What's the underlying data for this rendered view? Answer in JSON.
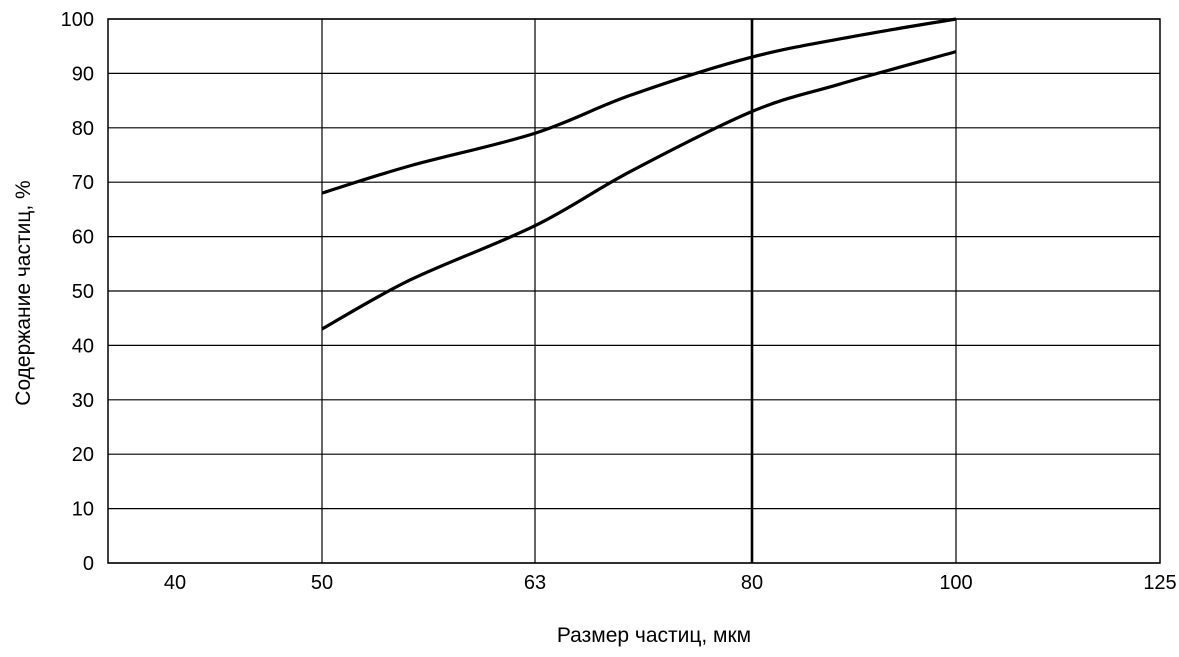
{
  "chart_data": {
    "type": "line",
    "title": "",
    "xlabel": "Размер частиц, мкм",
    "ylabel": "Содержание частиц, %",
    "x_ticks": [
      "40",
      "50",
      "63",
      "80",
      "100",
      "125"
    ],
    "x_scale": "log",
    "ylim": [
      0,
      100
    ],
    "y_ticks": [
      "0",
      "10",
      "20",
      "30",
      "40",
      "50",
      "60",
      "70",
      "80",
      "90",
      "100"
    ],
    "grid": true,
    "emphasized_vertical_line_x": 80,
    "series": [
      {
        "x": [
          50,
          55,
          63,
          70,
          80,
          90,
          100
        ],
        "y": [
          68,
          73,
          79,
          86,
          93,
          97,
          100
        ]
      },
      {
        "x": [
          50,
          55,
          63,
          70,
          80,
          88,
          100
        ],
        "y": [
          43,
          52,
          62,
          72,
          83,
          88,
          94
        ]
      }
    ]
  }
}
